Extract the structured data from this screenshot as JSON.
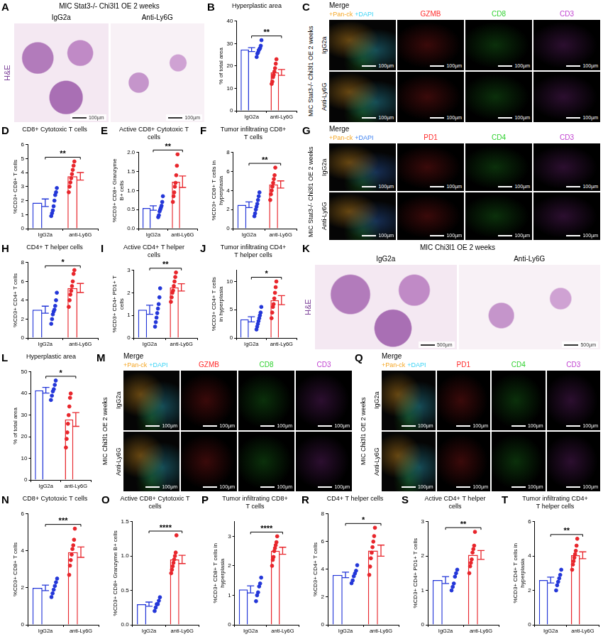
{
  "chart_data": [
    {
      "panel": "B",
      "type": "bar",
      "title": "Hyperplastic area",
      "y_label": "% of total area",
      "categories": [
        "IgG2a",
        "anti-Ly6G"
      ],
      "values": [
        27.3,
        17.1
      ],
      "errors": [
        0.9,
        1.3
      ],
      "points": [
        [
          24,
          25.5,
          26,
          27,
          27.5,
          28,
          29,
          31.5
        ],
        [
          12,
          13,
          15,
          16,
          17.5,
          19,
          21,
          23
        ]
      ],
      "colors": [
        "#2336d8",
        "#e8252b"
      ],
      "ylim": [
        0,
        40
      ],
      "yticks": [
        0,
        10,
        20,
        30,
        40
      ],
      "annotation": "**",
      "grid": false
    },
    {
      "panel": "D",
      "type": "bar",
      "title": "CD8+ Cytotoxic T cells",
      "y_label": "%CD3+ CD8+ T cells",
      "categories": [
        "IgG2a",
        "anti-Ly6G"
      ],
      "values": [
        1.85,
        3.74
      ],
      "errors": [
        0.27,
        0.27
      ],
      "points": [
        [
          0.9,
          1.1,
          1.3,
          1.6,
          2.0,
          2.4,
          2.6,
          2.9
        ],
        [
          2.6,
          3.0,
          3.3,
          3.6,
          3.9,
          4.2,
          4.5,
          4.8
        ]
      ],
      "colors": [
        "#2336d8",
        "#e8252b"
      ],
      "ylim": [
        0,
        6
      ],
      "yticks": [
        0,
        1,
        2,
        3,
        4,
        5,
        6
      ],
      "annotation": "**",
      "grid": false
    },
    {
      "panel": "E",
      "type": "bar",
      "title": "Active CD8+ Cytotoxic T cells",
      "y_label": "%CD3+ CD8+ Granzyme B+ cells",
      "categories": [
        "IgG2a",
        "anti-Ly6G"
      ],
      "values": [
        0.54,
        1.23
      ],
      "errors": [
        0.06,
        0.15
      ],
      "points": [
        [
          0.3,
          0.35,
          0.45,
          0.5,
          0.55,
          0.6,
          0.7,
          0.85
        ],
        [
          0.7,
          0.85,
          0.95,
          1.1,
          1.2,
          1.4,
          1.65,
          1.95
        ]
      ],
      "colors": [
        "#2336d8",
        "#e8252b"
      ],
      "ylim": [
        0,
        2
      ],
      "yticks": [
        {
          "value": 0,
          "label": "0.0"
        },
        0.5,
        {
          "value": 1,
          "label": "1.0"
        },
        1.5,
        {
          "value": 2,
          "label": "2.0"
        }
      ],
      "annotation": "**",
      "grid": false
    },
    {
      "panel": "F",
      "type": "bar",
      "title": "Tumor infiltrating CD8+ T cells",
      "y_label": "%CD3+ CD8+ T cells in hyperplasia",
      "categories": [
        "IgG2a",
        "anti-Ly6G"
      ],
      "values": [
        2.5,
        4.63
      ],
      "errors": [
        0.3,
        0.38
      ],
      "points": [
        [
          1.3,
          1.6,
          2.0,
          2.3,
          2.6,
          3.0,
          3.4,
          3.8
        ],
        [
          3.0,
          3.6,
          4.0,
          4.4,
          4.8,
          5.2,
          5.6,
          6.4
        ]
      ],
      "colors": [
        "#2336d8",
        "#e8252b"
      ],
      "ylim": [
        0,
        8
      ],
      "yticks": [
        0,
        2,
        4,
        6,
        8
      ],
      "annotation": "**",
      "grid": false
    },
    {
      "panel": "H",
      "type": "bar",
      "title": "CD4+ T helper cells",
      "y_label": "%CD3+ CD4+ T cells",
      "categories": [
        "IgG2a",
        "anti-Ly6G"
      ],
      "values": [
        3.0,
        5.3
      ],
      "errors": [
        0.37,
        0.48
      ],
      "points": [
        [
          1.5,
          2.0,
          2.5,
          2.8,
          3.0,
          3.4,
          4.0,
          4.8
        ],
        [
          3.3,
          4.0,
          4.6,
          5.0,
          5.5,
          6.0,
          6.8,
          7.2
        ]
      ],
      "colors": [
        "#2336d8",
        "#e8252b"
      ],
      "ylim": [
        0,
        8
      ],
      "yticks": [
        0,
        2,
        4,
        6,
        8
      ],
      "annotation": "*",
      "grid": false
    },
    {
      "panel": "I",
      "type": "bar",
      "title": "Active CD4+ T helper cells",
      "y_label": "%CD3+ CD4+ PD1+ T cells",
      "categories": [
        "IgG2a",
        "anti-Ly6G"
      ],
      "values": [
        1.25,
        2.24
      ],
      "errors": [
        0.2,
        0.16
      ],
      "points": [
        [
          0.5,
          0.7,
          0.9,
          1.1,
          1.3,
          1.5,
          1.8,
          2.2
        ],
        [
          1.6,
          1.8,
          2.0,
          2.1,
          2.3,
          2.5,
          2.7,
          2.9
        ]
      ],
      "colors": [
        "#2336d8",
        "#e8252b"
      ],
      "ylim": [
        0,
        3
      ],
      "yticks": [
        0,
        1,
        2,
        3
      ],
      "annotation": "**",
      "grid": false
    },
    {
      "panel": "J",
      "type": "bar",
      "title": "Tumor infiltrating CD4+ T helper cells",
      "y_label": "%CD3+ CD4+ T cells in hyperplasia",
      "categories": [
        "IgG2a",
        "anti-Ly6G"
      ],
      "values": [
        3.31,
        6.69
      ],
      "errors": [
        0.46,
        0.8
      ],
      "points": [
        [
          1.5,
          2.0,
          2.5,
          3.0,
          3.5,
          4.0,
          4.5,
          5.5
        ],
        [
          3.5,
          4.5,
          5.5,
          6.0,
          7.0,
          8.0,
          9.0,
          10.0
        ]
      ],
      "colors": [
        "#2336d8",
        "#e8252b"
      ],
      "ylim": [
        0,
        12
      ],
      "yticks": [
        0,
        5,
        10
      ],
      "annotation": "*",
      "grid": false
    },
    {
      "panel": "L",
      "type": "bar",
      "title": "Hyperplastic area",
      "y_label": "% of total area",
      "categories": [
        "IgG2a",
        "anti-Ly6G"
      ],
      "values": [
        41.5,
        28
      ],
      "errors": [
        1.3,
        3.2
      ],
      "points": [
        [
          37,
          39,
          41,
          42,
          44,
          46
        ],
        [
          15,
          19,
          22,
          26,
          30,
          34,
          38,
          40
        ]
      ],
      "colors": [
        "#2336d8",
        "#e8252b"
      ],
      "ylim": [
        0,
        50
      ],
      "yticks": [
        0,
        10,
        20,
        30,
        40,
        50
      ],
      "annotation": "*",
      "grid": false
    },
    {
      "panel": "N",
      "type": "bar",
      "title": "CD8+ Cytotoxic T cells",
      "y_label": "%CD3+ CD8+ T cells",
      "categories": [
        "IgG2a",
        "anti-Ly6G"
      ],
      "values": [
        2.0,
        3.93
      ],
      "errors": [
        0.15,
        0.28
      ],
      "points": [
        [
          1.5,
          1.7,
          1.9,
          2.1,
          2.3,
          2.5
        ],
        [
          2.7,
          3.2,
          3.5,
          3.8,
          4.1,
          4.3,
          4.6,
          5.2
        ]
      ],
      "colors": [
        "#2336d8",
        "#e8252b"
      ],
      "ylim": [
        0,
        6
      ],
      "yticks": [
        0,
        2,
        4,
        6
      ],
      "annotation": "***",
      "grid": false
    },
    {
      "panel": "O",
      "type": "bar",
      "title": "Active CD8+ Cytotoxic T cells",
      "y_label": "%CD3+ CD8+ Granzyme B+ cells",
      "categories": [
        "IgG2a",
        "anti-Ly6G"
      ],
      "values": [
        0.3,
        0.95
      ],
      "errors": [
        0.03,
        0.06
      ],
      "points": [
        [
          0.2,
          0.25,
          0.3,
          0.3,
          0.35,
          0.4
        ],
        [
          0.75,
          0.8,
          0.85,
          0.9,
          0.95,
          1.0,
          1.05,
          1.3
        ]
      ],
      "colors": [
        "#2336d8",
        "#e8252b"
      ],
      "ylim": [
        0,
        1.5
      ],
      "yticks": [
        {
          "value": 0,
          "label": "0.0"
        },
        0.5,
        {
          "value": 1,
          "label": "1.0"
        },
        1.5
      ],
      "annotation": "****",
      "grid": false
    },
    {
      "panel": "P",
      "type": "bar",
      "title": "Tumor infiltrating CD8+ T cells",
      "y_label": "%CD3+ CD8+ T cells in hyperplasia",
      "categories": [
        "IgG2a",
        "anti-Ly6G"
      ],
      "values": [
        1.2,
        2.51
      ],
      "errors": [
        0.12,
        0.12
      ],
      "points": [
        [
          0.8,
          1.0,
          1.1,
          1.3,
          1.4,
          1.6
        ],
        [
          2.0,
          2.2,
          2.3,
          2.5,
          2.6,
          2.7,
          2.8,
          3.0
        ]
      ],
      "colors": [
        "#2336d8",
        "#e8252b"
      ],
      "ylim": [
        0,
        3.5
      ],
      "yticks": [
        0,
        1,
        2,
        3
      ],
      "annotation": "****",
      "grid": false
    },
    {
      "panel": "R",
      "type": "bar",
      "title": "CD4+ T helper cells",
      "y_label": "%CD3+ CD4+ T cells",
      "categories": [
        "IgG2a",
        "anti-Ly6G"
      ],
      "values": [
        3.6,
        5.35
      ],
      "errors": [
        0.2,
        0.4
      ],
      "points": [
        [
          3.0,
          3.2,
          3.5,
          3.7,
          3.9,
          4.3
        ],
        [
          3.6,
          4.2,
          4.8,
          5.2,
          5.6,
          6.0,
          6.4,
          7.0
        ]
      ],
      "colors": [
        "#2336d8",
        "#e8252b"
      ],
      "ylim": [
        0,
        8
      ],
      "yticks": [
        0,
        2,
        4,
        6,
        8
      ],
      "annotation": "*",
      "grid": false
    },
    {
      "panel": "S",
      "type": "bar",
      "title": "Active CD4+ T helper cells",
      "y_label": "%CD3+ CD4+ PD1+ T cells",
      "categories": [
        "IgG2a",
        "anti-Ly6G"
      ],
      "values": [
        1.3,
        2.03
      ],
      "errors": [
        0.1,
        0.13
      ],
      "points": [
        [
          1.0,
          1.1,
          1.2,
          1.4,
          1.5,
          1.6
        ],
        [
          1.5,
          1.7,
          1.8,
          1.9,
          2.1,
          2.2,
          2.3,
          2.7
        ]
      ],
      "colors": [
        "#2336d8",
        "#e8252b"
      ],
      "ylim": [
        0,
        3
      ],
      "yticks": [
        0,
        1,
        2,
        3
      ],
      "annotation": "**",
      "grid": false
    },
    {
      "panel": "T",
      "type": "bar",
      "title": "Tumor infiltrating CD4+ T helper cells",
      "y_label": "%CD3+ CD4+ T cells in hyperplasia",
      "categories": [
        "IgG2a",
        "anti-Ly6G"
      ],
      "values": [
        2.6,
        4.04
      ],
      "errors": [
        0.17,
        0.2
      ],
      "points": [
        [
          2.0,
          2.3,
          2.5,
          2.7,
          2.9,
          3.2
        ],
        [
          3.2,
          3.5,
          3.7,
          3.9,
          4.1,
          4.3,
          4.6,
          5.0
        ]
      ],
      "colors": [
        "#2336d8",
        "#e8252b"
      ],
      "ylim": [
        0,
        6
      ],
      "yticks": [
        0,
        2,
        4,
        6
      ],
      "annotation": "**",
      "grid": false
    }
  ],
  "image_panels": [
    {
      "panel": "A",
      "type": "he_image",
      "title": "MIC Stat3-/- Chi3l1 OE 2 weeks",
      "stain": "H&E",
      "groups": [
        "IgG2a",
        "Anti-Ly6G"
      ],
      "scale_bar": "100µm"
    },
    {
      "panel": "C",
      "type": "if_image",
      "side_label": "MIC Stat3-/- Chi3l1 OE 2 weeks",
      "groups": [
        "IgG2a",
        "Anti-Ly6G"
      ],
      "merge_label": "Merge",
      "merge_channels": [
        {
          "name": "+Pan-ck",
          "color": "#f5a623"
        },
        {
          "name": "+DAPI",
          "color": "#38d3f5"
        }
      ],
      "channels": [
        {
          "name": "GZMB",
          "color": "#ff2b2b"
        },
        {
          "name": "CD8",
          "color": "#2fd12f"
        },
        {
          "name": "CD3",
          "color": "#c040d0"
        }
      ],
      "scale_bar": "100µm"
    },
    {
      "panel": "G",
      "type": "if_image",
      "side_label": "MIC Stat3-/- Chi3l1 OE 2 weeks",
      "groups": [
        "IgG2a",
        "Anti-Ly6G"
      ],
      "merge_label": "Merge",
      "merge_channels": [
        {
          "name": "+Pan-ck",
          "color": "#f5a623"
        },
        {
          "name": "+DAPI",
          "color": "#3a7ff0"
        }
      ],
      "channels": [
        {
          "name": "PD1",
          "color": "#ff2b2b"
        },
        {
          "name": "CD4",
          "color": "#2fd12f"
        },
        {
          "name": "CD3",
          "color": "#c040d0"
        }
      ],
      "scale_bar": "100µm"
    },
    {
      "panel": "K",
      "type": "he_image",
      "title": "MIC Chi3l1 OE 2 weeks",
      "stain": "H&E",
      "groups": [
        "IgG2a",
        "Anti-Ly6G"
      ],
      "scale_bar": "500µm"
    },
    {
      "panel": "M",
      "type": "if_image",
      "side_label": "MIC Chi3l1 OE 2 weeks",
      "groups": [
        "IgG2a",
        "Anti-Ly6G"
      ],
      "merge_label": "Merge",
      "merge_channels": [
        {
          "name": "+Pan-ck",
          "color": "#f5a623"
        },
        {
          "name": "+DAPI",
          "color": "#38d3f5"
        }
      ],
      "channels": [
        {
          "name": "GZMB",
          "color": "#ff2b2b"
        },
        {
          "name": "CD8",
          "color": "#2fd12f"
        },
        {
          "name": "CD3",
          "color": "#c040d0"
        }
      ],
      "scale_bar": "100µm"
    },
    {
      "panel": "Q",
      "type": "if_image",
      "side_label": "MIC Chi3l1 OE 2 weeks",
      "groups": [
        "IgG2a",
        "Anti-Ly6G"
      ],
      "merge_label": "Merge",
      "merge_channels": [
        {
          "name": "+Pan-ck",
          "color": "#f5a623"
        },
        {
          "name": "+DAPI",
          "color": "#38d3f5"
        }
      ],
      "channels": [
        {
          "name": "PD1",
          "color": "#ff2b2b"
        },
        {
          "name": "CD4",
          "color": "#2fd12f"
        },
        {
          "name": "CD3",
          "color": "#c040d0"
        }
      ],
      "scale_bar": "100µm"
    }
  ]
}
